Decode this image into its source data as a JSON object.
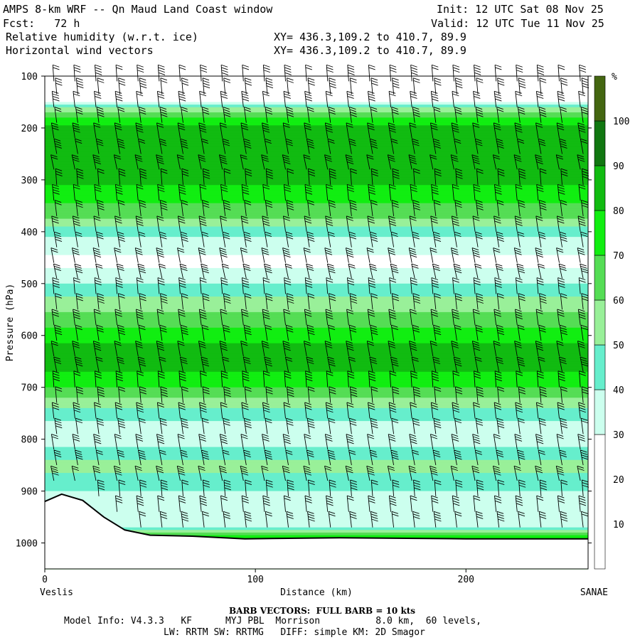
{
  "header": {
    "title": "AMPS 8-km WRF -- Qn Maud Land Coast window",
    "init": "Init: 12 UTC Sat 08 Nov 25",
    "fcst": "Fcst:   72 h",
    "valid": "Valid: 12 UTC Tue 11 Nov 25",
    "field1_name": "Relative humidity (w.r.t. ice)",
    "field1_xy": "XY= 436.3,109.2 to 410.7, 89.9",
    "field2_name": "Horizontal wind vectors",
    "field2_xy": "XY= 436.3,109.2 to 410.7, 89.9"
  },
  "footer": {
    "barb_note": "BARB VECTORS:  FULL BARB = 10 kts",
    "model_info": "Model Info: V4.3.3   KF      MYJ PBL  Morrison          8.0 km,  60 levels,",
    "model_info2": "LW: RRTM SW: RRTMG   DIFF: simple KM: 2D Smagor"
  },
  "chart_data": {
    "type": "heatmap",
    "x": {
      "label": "Distance (km)",
      "range": [
        0,
        258
      ],
      "ticks": [
        0,
        100,
        200
      ],
      "left_label": "Veslis",
      "right_label": "SANAE"
    },
    "y": {
      "label": "Pressure (hPa)",
      "range": [
        100,
        1050
      ],
      "ticks": [
        100,
        200,
        300,
        400,
        500,
        600,
        700,
        800,
        900,
        1000
      ]
    },
    "colorbar": {
      "unit": "%",
      "ticks": [
        10,
        20,
        30,
        40,
        50,
        60,
        70,
        80,
        90,
        100
      ],
      "levels": [
        {
          "from": 0,
          "to": 30,
          "color": "#ffffff"
        },
        {
          "from": 30,
          "to": 40,
          "color": "#ccffee"
        },
        {
          "from": 40,
          "to": 50,
          "color": "#66eecc"
        },
        {
          "from": 50,
          "to": 60,
          "color": "#99f099"
        },
        {
          "from": 60,
          "to": 70,
          "color": "#55dd55"
        },
        {
          "from": 70,
          "to": 80,
          "color": "#11ee11"
        },
        {
          "from": 80,
          "to": 90,
          "color": "#11bb11"
        },
        {
          "from": 90,
          "to": 100,
          "color": "#117711"
        },
        {
          "from": 100,
          "to": 110,
          "color": "#446611"
        }
      ]
    },
    "rh_profile": [
      {
        "p": 100,
        "rh": 25
      },
      {
        "p": 150,
        "rh": 28
      },
      {
        "p": 165,
        "rh": 55
      },
      {
        "p": 180,
        "rh": 72
      },
      {
        "p": 200,
        "rh": 82
      },
      {
        "p": 230,
        "rh": 88
      },
      {
        "p": 270,
        "rh": 86
      },
      {
        "p": 310,
        "rh": 80
      },
      {
        "p": 340,
        "rh": 72
      },
      {
        "p": 370,
        "rh": 62
      },
      {
        "p": 400,
        "rh": 45
      },
      {
        "p": 430,
        "rh": 32
      },
      {
        "p": 460,
        "rh": 28
      },
      {
        "p": 490,
        "rh": 35
      },
      {
        "p": 520,
        "rh": 48
      },
      {
        "p": 550,
        "rh": 58
      },
      {
        "p": 580,
        "rh": 68
      },
      {
        "p": 610,
        "rh": 78
      },
      {
        "p": 640,
        "rh": 86
      },
      {
        "p": 670,
        "rh": 80
      },
      {
        "p": 700,
        "rh": 70
      },
      {
        "p": 730,
        "rh": 55
      },
      {
        "p": 760,
        "rh": 42
      },
      {
        "p": 790,
        "rh": 32
      },
      {
        "p": 820,
        "rh": 42
      },
      {
        "p": 850,
        "rh": 55
      },
      {
        "p": 880,
        "rh": 45
      },
      {
        "p": 910,
        "rh": 38
      },
      {
        "p": 940,
        "rh": 30
      },
      {
        "p": 970,
        "rh": 40
      },
      {
        "p": 990,
        "rh": 75
      }
    ],
    "terrain": [
      {
        "x": 0,
        "p": 920
      },
      {
        "x": 8,
        "p": 906
      },
      {
        "x": 18,
        "p": 918
      },
      {
        "x": 28,
        "p": 950
      },
      {
        "x": 38,
        "p": 975
      },
      {
        "x": 50,
        "p": 985
      },
      {
        "x": 70,
        "p": 987
      },
      {
        "x": 95,
        "p": 992
      },
      {
        "x": 140,
        "p": 990
      },
      {
        "x": 200,
        "p": 992
      },
      {
        "x": 258,
        "p": 992
      }
    ],
    "barb_columns_x": [
      5,
      15,
      25,
      35,
      45,
      55,
      65,
      75,
      85,
      95,
      105,
      115,
      125,
      135,
      145,
      155,
      165,
      175,
      185,
      195,
      205,
      215,
      225,
      235,
      245,
      255
    ],
    "barb_levels_p": [
      110,
      135,
      160,
      190,
      220,
      250,
      280,
      310,
      340,
      370,
      400,
      430,
      460,
      490,
      520,
      550,
      580,
      610,
      640,
      670,
      700,
      730,
      760,
      790,
      820,
      850,
      880,
      910,
      940,
      970
    ]
  }
}
